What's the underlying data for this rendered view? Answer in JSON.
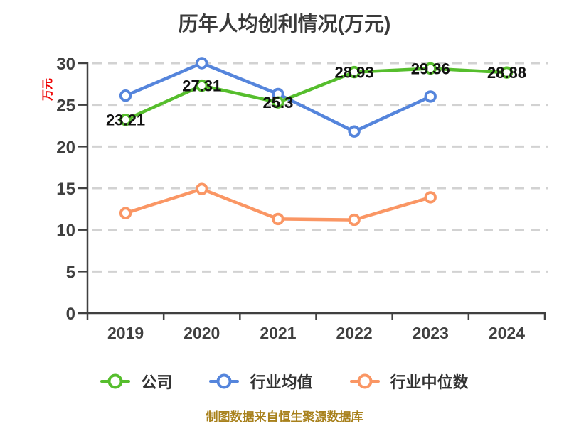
{
  "title": "历年人均创利情况(万元)",
  "y_axis_label": "万元",
  "footnote": "制图数据来自恒生聚源数据库",
  "colors": {
    "company": "#56be2d",
    "industry_average": "#5585dc",
    "industry_median": "#fa9664",
    "grid": "#d2d2d2",
    "axis": "#404040",
    "tick_text": "#404040",
    "data_label": "#111111",
    "title_text": "#3a3a3a",
    "ylabel_red": "#ee0000",
    "footnote_text": "#a8811c"
  },
  "chart_data": {
    "type": "line",
    "title": "历年人均创利情况(万元)",
    "xlabel": "",
    "ylabel": "万元",
    "categories": [
      "2019",
      "2020",
      "2021",
      "2022",
      "2023",
      "2024"
    ],
    "yticks": [
      0,
      5,
      10,
      15,
      20,
      25,
      30
    ],
    "ylim": [
      0,
      30
    ],
    "grid": "horizontal-dashed",
    "legend_position": "bottom",
    "marker": "hollow-circle",
    "series": [
      {
        "key": "company",
        "name": "公司",
        "color": "#56be2d",
        "values": [
          23.21,
          27.31,
          25.3,
          28.93,
          29.36,
          28.88
        ],
        "labels": [
          "23.21",
          "27.31",
          "25.3",
          "28.93",
          "29.36",
          "28.88"
        ],
        "show_labels": true
      },
      {
        "key": "industry-average",
        "name": "行业均值",
        "color": "#5585dc",
        "values": [
          26.1,
          30,
          26.3,
          21.8,
          26,
          null
        ],
        "labels": [],
        "show_labels": false
      },
      {
        "key": "industry-median",
        "name": "行业中位数",
        "color": "#fa9664",
        "values": [
          12,
          14.9,
          11.3,
          11.2,
          13.9,
          null
        ],
        "labels": [],
        "show_labels": false
      }
    ]
  }
}
